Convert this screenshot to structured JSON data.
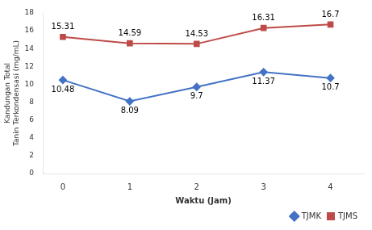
{
  "chart_data": {
    "type": "line",
    "x_label": "Waktu (Jam)",
    "y_label": "Kandungan Total\nTanin Terkondensasi (mg/mL)",
    "x": [
      0,
      1,
      2,
      3,
      4
    ],
    "series": [
      {
        "name": "TJMK",
        "color": "#4472C4",
        "marker": "diamond",
        "values": [
          10.48,
          8.09,
          9.7,
          11.37,
          10.7
        ]
      },
      {
        "name": "TJMS",
        "color": "#BE4B48",
        "marker": "square",
        "values": [
          15.31,
          14.59,
          14.53,
          16.31,
          16.7
        ]
      }
    ],
    "xlim": [
      -0.3,
      4.5
    ],
    "xticks": [
      0,
      1,
      2,
      3,
      4
    ],
    "ylim": [
      0,
      18
    ],
    "yticks": [
      0,
      2,
      4,
      6,
      8,
      10,
      12,
      14,
      16,
      18
    ],
    "grid": false,
    "legend": "lower right",
    "data_labels": true
  }
}
